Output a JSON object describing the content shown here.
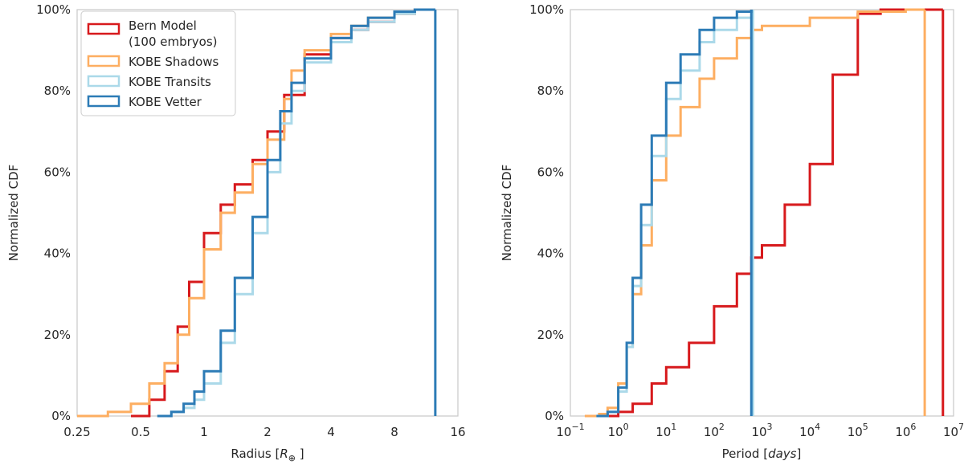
{
  "chart_data": [
    {
      "type": "step-cdf",
      "xscale": "log2",
      "xlabel": "Radius [R⊕]",
      "ylabel": "Normalized CDF",
      "xlim": [
        0.25,
        16
      ],
      "ylim": [
        0,
        100
      ],
      "x_ticks": [
        0.25,
        0.5,
        1,
        2,
        4,
        8,
        16
      ],
      "x_tick_labels": [
        "0.25",
        "0.5",
        "1",
        "2",
        "4",
        "8",
        "16"
      ],
      "y_ticks": [
        0,
        20,
        40,
        60,
        80,
        100
      ],
      "y_tick_labels": [
        "0%",
        "20%",
        "40%",
        "60%",
        "80%",
        "100%"
      ],
      "legend": {
        "position": "upper-left",
        "entries": [
          "Bern Model",
          "(100 embryos)",
          "KOBE Shadows",
          "KOBE Transits",
          "KOBE Vetter"
        ]
      },
      "series": [
        {
          "name": "Bern Model (100 embryos)",
          "color": "#d7191c",
          "x": [
            0.45,
            0.55,
            0.65,
            0.75,
            0.85,
            1.0,
            1.2,
            1.4,
            1.7,
            2.0,
            2.4,
            3.0,
            4.0,
            5.0,
            6.0,
            8.0,
            10.0,
            12.5
          ],
          "y": [
            0,
            4,
            11,
            22,
            33,
            45,
            52,
            57,
            63,
            70,
            79,
            89,
            93,
            95,
            97,
            99,
            100,
            100
          ]
        },
        {
          "name": "KOBE Shadows",
          "color": "#fdae61",
          "x": [
            0.25,
            0.35,
            0.45,
            0.55,
            0.65,
            0.75,
            0.85,
            1.0,
            1.2,
            1.4,
            1.7,
            2.0,
            2.4,
            2.6,
            3.0,
            4.0,
            5.0,
            6.0,
            8.0,
            10.0,
            12.5
          ],
          "y": [
            0,
            1,
            3,
            8,
            13,
            20,
            29,
            41,
            50,
            55,
            62,
            68,
            78,
            85,
            90,
            94,
            96,
            98,
            99,
            100,
            100
          ]
        },
        {
          "name": "KOBE Transits",
          "color": "#abd9e9",
          "x": [
            0.6,
            0.7,
            0.8,
            0.9,
            1.0,
            1.2,
            1.4,
            1.7,
            2.0,
            2.3,
            2.6,
            3.0,
            4.0,
            5.0,
            6.0,
            8.0,
            10.0,
            12.5
          ],
          "y": [
            0,
            1,
            2,
            4,
            8,
            18,
            30,
            45,
            60,
            72,
            80,
            87,
            92,
            95,
            97,
            99,
            100,
            100
          ]
        },
        {
          "name": "KOBE Vetter",
          "color": "#2c7bb6",
          "x": [
            0.6,
            0.7,
            0.8,
            0.9,
            1.0,
            1.2,
            1.4,
            1.7,
            2.0,
            2.3,
            2.6,
            3.0,
            4.0,
            5.0,
            6.0,
            8.0,
            10.0,
            12.5
          ],
          "y": [
            0,
            1,
            3,
            6,
            11,
            21,
            34,
            49,
            63,
            75,
            82,
            88,
            93,
            96,
            98,
            99.5,
            100,
            100
          ],
          "vline_x": 12.5
        }
      ]
    },
    {
      "type": "step-cdf",
      "xscale": "log10",
      "xlabel": "Period [days]",
      "ylabel": "Normalized CDF",
      "xlim": [
        0.1,
        10000000
      ],
      "ylim": [
        0,
        100
      ],
      "x_ticks": [
        0.1,
        1,
        10,
        100,
        1000,
        10000,
        100000,
        1000000,
        10000000
      ],
      "x_tick_labels": [
        "10",
        "10",
        "10",
        "10",
        "10",
        "10",
        "10",
        "10",
        "10"
      ],
      "x_tick_exponents": [
        "−1",
        "0",
        "1",
        "2",
        "3",
        "4",
        "5",
        "6",
        "7"
      ],
      "y_ticks": [
        0,
        20,
        40,
        60,
        80,
        100
      ],
      "y_tick_labels": [
        "0%",
        "20%",
        "40%",
        "60%",
        "80%",
        "100%"
      ],
      "series": [
        {
          "name": "Bern Model (100 embryos)",
          "color": "#d7191c",
          "x": [
            0.6,
            1,
            2,
            5,
            10,
            30,
            100,
            300,
            600,
            1000,
            3000,
            10000,
            30000,
            100000,
            300000,
            1000000,
            3000000,
            6000000
          ],
          "y": [
            0,
            1,
            3,
            8,
            12,
            18,
            27,
            35,
            39,
            42,
            52,
            62,
            84,
            99,
            100,
            100,
            100,
            100
          ],
          "vline_x": 6000000
        },
        {
          "name": "KOBE Shadows",
          "color": "#fdae61",
          "x": [
            0.2,
            0.4,
            0.6,
            1,
            1.5,
            2,
            3,
            5,
            10,
            20,
            50,
            100,
            300,
            600,
            1000,
            10000,
            100000,
            1000000,
            2500000
          ],
          "y": [
            0,
            0.5,
            2,
            8,
            17,
            30,
            42,
            58,
            69,
            76,
            83,
            88,
            93,
            95,
            96,
            98,
            99.5,
            100,
            100
          ],
          "vline_x": 2500000
        },
        {
          "name": "KOBE Transits",
          "color": "#abd9e9",
          "x": [
            0.35,
            0.6,
            1,
            1.5,
            2,
            3,
            5,
            10,
            20,
            50,
            100,
            300,
            650
          ],
          "y": [
            0,
            1,
            6,
            17,
            32,
            47,
            64,
            78,
            85,
            92,
            95,
            98,
            100
          ],
          "vline_x": 650
        },
        {
          "name": "KOBE Vetter",
          "color": "#2c7bb6",
          "x": [
            0.35,
            0.6,
            1,
            1.5,
            2,
            3,
            5,
            10,
            20,
            50,
            100,
            300,
            600
          ],
          "y": [
            0,
            1,
            7,
            18,
            34,
            52,
            69,
            82,
            89,
            95,
            98,
            99.5,
            100
          ],
          "vline_x": 600
        }
      ]
    }
  ]
}
